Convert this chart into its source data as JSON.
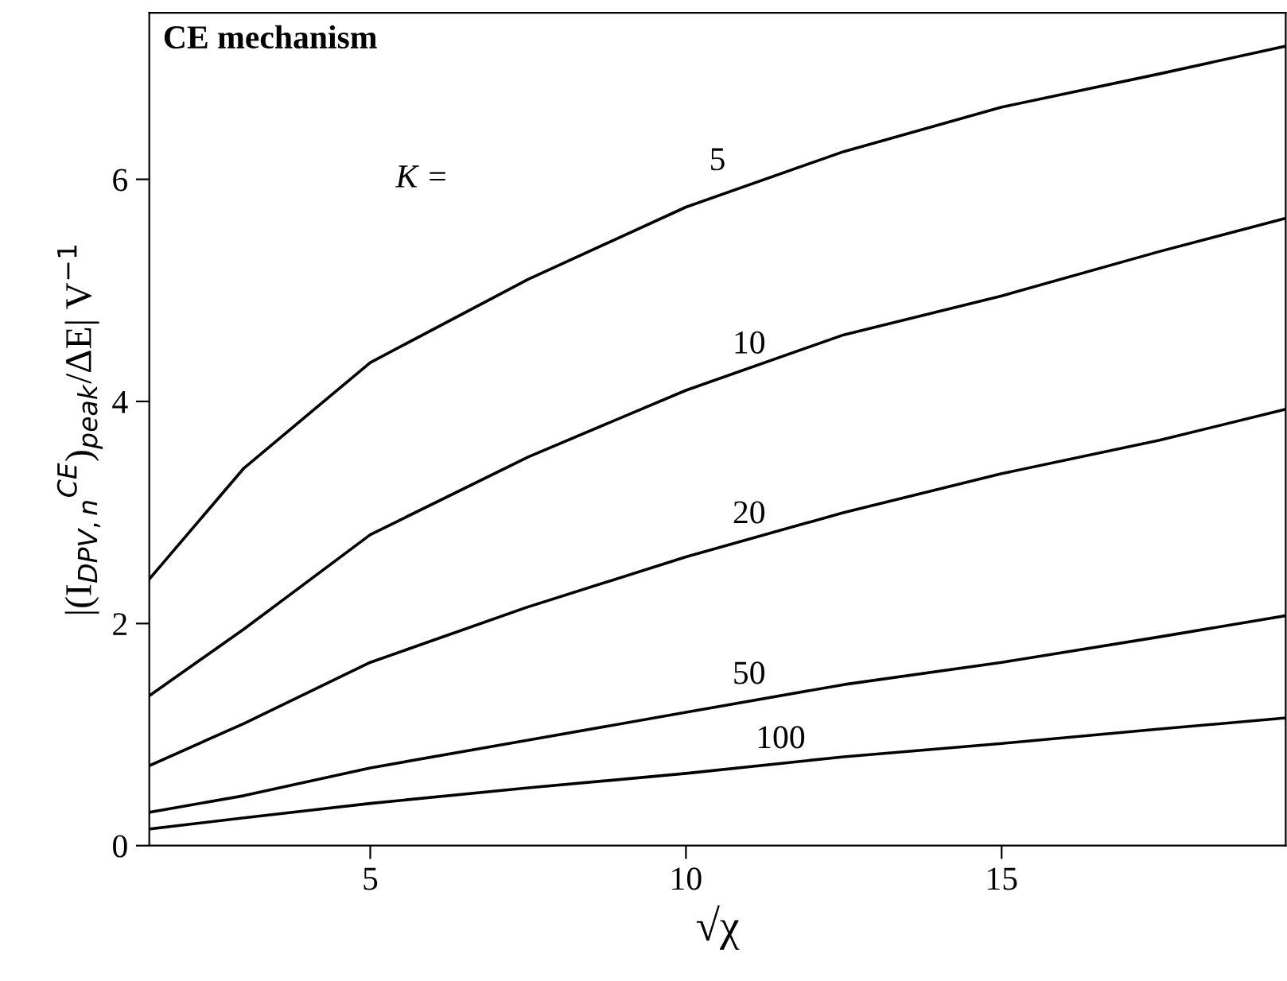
{
  "chart_data": {
    "type": "line",
    "title": "CE mechanism",
    "xlabel": "√χ",
    "ylabel": "|(I$_{DPV,n}$$^{CE}$)$_{peak}$/ΔE| V$^{−1}$",
    "x": [
      1.5,
      3,
      5,
      7.5,
      10,
      12.5,
      15,
      17.5,
      19.5
    ],
    "series": [
      {
        "name": "5",
        "color": "#000000",
        "values": [
          2.4,
          3.4,
          4.35,
          5.1,
          5.75,
          6.25,
          6.65,
          6.95,
          7.2
        ]
      },
      {
        "name": "10",
        "color": "#000000",
        "values": [
          1.35,
          1.95,
          2.8,
          3.5,
          4.1,
          4.6,
          4.95,
          5.35,
          5.65
        ]
      },
      {
        "name": "20",
        "color": "#000000",
        "values": [
          0.72,
          1.1,
          1.65,
          2.15,
          2.6,
          3.0,
          3.35,
          3.65,
          3.93
        ]
      },
      {
        "name": "50",
        "color": "#000000",
        "values": [
          0.3,
          0.45,
          0.7,
          0.95,
          1.2,
          1.45,
          1.65,
          1.88,
          2.07
        ]
      },
      {
        "name": "100",
        "color": "#000000",
        "values": [
          0.15,
          0.25,
          0.38,
          0.52,
          0.65,
          0.8,
          0.92,
          1.05,
          1.15
        ]
      }
    ],
    "annotations": [
      "K ="
    ],
    "xlim": [
      1.5,
      19.5
    ],
    "ylim": [
      0,
      7.5
    ],
    "xticks": [
      5,
      10,
      15
    ],
    "yticks": [
      0,
      2,
      4,
      6
    ],
    "grid": false,
    "legend": false,
    "marker": "none",
    "line_style": "solid"
  }
}
